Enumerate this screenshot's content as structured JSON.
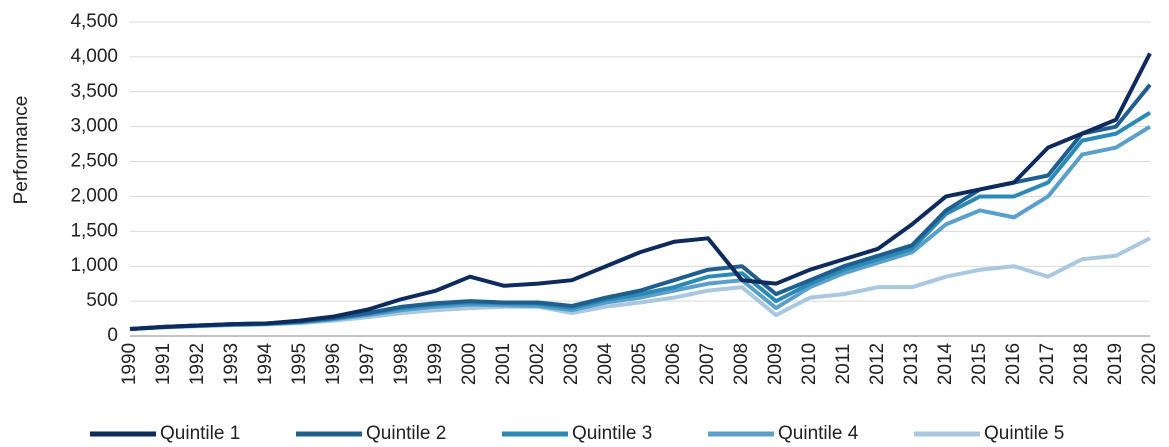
{
  "chart_data": {
    "type": "line",
    "y_label": "Performance",
    "categories": [
      "1990",
      "1991",
      "1992",
      "1993",
      "1994",
      "1995",
      "1996",
      "1997",
      "1998",
      "1999",
      "2000",
      "2001",
      "2002",
      "2003",
      "2004",
      "2005",
      "2006",
      "2007",
      "2008",
      "2009",
      "2010",
      "2011",
      "2012",
      "2013",
      "2014",
      "2015",
      "2016",
      "2017",
      "2018",
      "2019",
      "2020"
    ],
    "series": [
      {
        "name": "Quintile 1",
        "color": "#0d2b5c",
        "values": [
          100,
          130,
          150,
          170,
          180,
          220,
          280,
          380,
          530,
          650,
          850,
          720,
          750,
          800,
          1000,
          1200,
          1350,
          1400,
          800,
          750,
          950,
          1100,
          1250,
          1600,
          2000,
          2100,
          2200,
          2700,
          2900,
          3100,
          4050
        ]
      },
      {
        "name": "Quintile 2",
        "color": "#1f5f8f",
        "values": [
          100,
          130,
          150,
          170,
          180,
          210,
          260,
          330,
          420,
          470,
          500,
          480,
          480,
          430,
          550,
          650,
          800,
          950,
          1000,
          600,
          800,
          1000,
          1150,
          1300,
          1800,
          2100,
          2200,
          2300,
          2900,
          3000,
          3600
        ]
      },
      {
        "name": "Quintile 3",
        "color": "#2b8ab5",
        "values": [
          100,
          130,
          150,
          165,
          175,
          200,
          250,
          320,
          400,
          450,
          480,
          470,
          460,
          400,
          520,
          600,
          700,
          850,
          900,
          500,
          750,
          950,
          1100,
          1250,
          1750,
          2000,
          2000,
          2200,
          2800,
          2900,
          3200
        ]
      },
      {
        "name": "Quintile 4",
        "color": "#5a9fcb",
        "values": [
          100,
          125,
          145,
          160,
          170,
          195,
          240,
          300,
          370,
          420,
          450,
          440,
          430,
          370,
          480,
          550,
          650,
          750,
          800,
          400,
          700,
          900,
          1050,
          1200,
          1600,
          1800,
          1700,
          2000,
          2600,
          2700,
          3000
        ]
      },
      {
        "name": "Quintile 5",
        "color": "#a9c8e0",
        "values": [
          100,
          125,
          140,
          155,
          165,
          185,
          220,
          270,
          330,
          370,
          400,
          420,
          420,
          330,
          420,
          480,
          550,
          650,
          700,
          300,
          550,
          600,
          700,
          700,
          850,
          950,
          1000,
          850,
          1100,
          1150,
          1400
        ]
      }
    ],
    "ylim": [
      0,
      4500
    ],
    "yticks": [
      0,
      500,
      {
        "value": 1000,
        "label": "1,000"
      },
      {
        "value": 1500,
        "label": "1,500"
      },
      {
        "value": 2000,
        "label": "2,000"
      },
      {
        "value": 2500,
        "label": "2,500"
      },
      {
        "value": 3000,
        "label": "3,000"
      },
      {
        "value": 3500,
        "label": "3,500"
      },
      {
        "value": 4000,
        "label": "4,000"
      },
      {
        "value": 4500,
        "label": "4,500"
      }
    ],
    "grid": true
  }
}
